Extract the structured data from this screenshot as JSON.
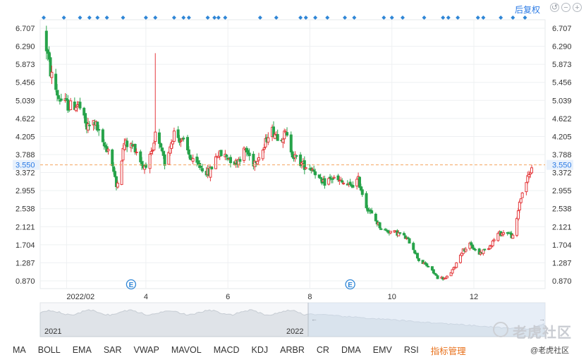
{
  "toolbar": {
    "restore_label": "后复权",
    "icons": [
      "refresh-icon",
      "zoom-out-icon",
      "zoom-in-icon"
    ]
  },
  "chart_data": {
    "type": "candlestick",
    "y_ticks": [
      "6.707",
      "6.290",
      "5.873",
      "5.456",
      "5.039",
      "4.622",
      "4.205",
      "3.788",
      "3.372",
      "2.955",
      "2.538",
      "2.121",
      "1.704",
      "1.287",
      "0.870"
    ],
    "ylim": [
      0.66,
      6.92
    ],
    "x_ticks": [
      "2022/02",
      "4",
      "6",
      "8",
      "10",
      "12"
    ],
    "current_price": "3.550",
    "current_price_value": 3.55,
    "up_color": "#e4393c",
    "down_color": "#27a34a",
    "event_marker_label": "E",
    "event_marker_dates": [
      "2022-03-21",
      "2022-08-31"
    ],
    "event_dots": [
      "2022-01-15",
      "2022-01-30",
      "2022-02-11",
      "2022-02-18",
      "2022-02-24",
      "2022-03-03",
      "2022-03-15",
      "2022-04-01",
      "2022-04-08",
      "2022-04-22",
      "2022-04-29",
      "2022-05-03",
      "2022-05-17",
      "2022-05-22",
      "2022-05-25",
      "2022-05-30",
      "2022-06-25",
      "2022-07-07",
      "2022-07-25",
      "2022-07-29",
      "2022-08-05",
      "2022-08-14",
      "2022-08-27",
      "2022-09-03",
      "2022-09-25",
      "2022-10-01",
      "2022-10-09",
      "2022-10-25",
      "2022-11-08",
      "2022-11-12",
      "2022-11-19",
      "2022-12-04",
      "2022-12-08",
      "2022-12-21",
      "2022-12-30",
      "2023-01-08"
    ],
    "prices_knots": [
      [
        "2022-01-15",
        6.62
      ],
      [
        "2022-01-20",
        5.7
      ],
      [
        "2022-01-26",
        5.1
      ],
      [
        "2022-02-03",
        4.9
      ],
      [
        "2022-02-10",
        4.95
      ],
      [
        "2022-02-16",
        4.4
      ],
      [
        "2022-02-22",
        4.55
      ],
      [
        "2022-02-28",
        4.0
      ],
      [
        "2022-03-05",
        3.9
      ],
      [
        "2022-03-10",
        3.05
      ],
      [
        "2022-03-16",
        4.05
      ],
      [
        "2022-03-24",
        3.95
      ],
      [
        "2022-03-30",
        3.5
      ],
      [
        "2022-04-06",
        3.8
      ],
      [
        "2022-04-08",
        4.25
      ],
      [
        "2022-04-15",
        3.6
      ],
      [
        "2022-04-22",
        4.3
      ],
      [
        "2022-04-29",
        4.05
      ],
      [
        "2022-05-06",
        3.6
      ],
      [
        "2022-05-12",
        3.5
      ],
      [
        "2022-05-18",
        3.35
      ],
      [
        "2022-05-24",
        3.8
      ],
      [
        "2022-05-31",
        3.75
      ],
      [
        "2022-06-07",
        3.6
      ],
      [
        "2022-06-14",
        3.9
      ],
      [
        "2022-06-20",
        3.6
      ],
      [
        "2022-06-28",
        3.95
      ],
      [
        "2022-07-02",
        4.4
      ],
      [
        "2022-07-09",
        4.2
      ],
      [
        "2022-07-14",
        4.25
      ],
      [
        "2022-07-20",
        3.75
      ],
      [
        "2022-07-27",
        3.55
      ],
      [
        "2022-08-04",
        3.45
      ],
      [
        "2022-08-10",
        3.1
      ],
      [
        "2022-08-17",
        3.25
      ],
      [
        "2022-08-24",
        3.15
      ],
      [
        "2022-08-31",
        3.05
      ],
      [
        "2022-09-06",
        3.2
      ],
      [
        "2022-09-12",
        2.6
      ],
      [
        "2022-09-18",
        2.3
      ],
      [
        "2022-09-24",
        2.05
      ],
      [
        "2022-10-01",
        2.0
      ],
      [
        "2022-10-08",
        1.95
      ],
      [
        "2022-10-15",
        1.75
      ],
      [
        "2022-10-21",
        1.35
      ],
      [
        "2022-10-28",
        1.2
      ],
      [
        "2022-11-04",
        0.95
      ],
      [
        "2022-11-10",
        0.92
      ],
      [
        "2022-11-16",
        1.15
      ],
      [
        "2022-11-22",
        1.55
      ],
      [
        "2022-11-28",
        1.7
      ],
      [
        "2022-12-05",
        1.5
      ],
      [
        "2022-12-12",
        1.65
      ],
      [
        "2022-12-19",
        1.95
      ],
      [
        "2022-12-26",
        2.0
      ],
      [
        "2022-12-31",
        1.85
      ],
      [
        "2023-01-04",
        2.7
      ],
      [
        "2023-01-08",
        3.1
      ],
      [
        "2023-01-15",
        3.6
      ]
    ]
  },
  "navigator": {
    "labels": [
      "2021",
      "2022"
    ]
  },
  "indicators": [
    "MA",
    "BOLL",
    "EMA",
    "SAR",
    "VWAP",
    "MAVOL",
    "MACD",
    "KDJ",
    "ARBR",
    "CR",
    "DMA",
    "EMV",
    "RSI",
    "指标管理"
  ],
  "watermark": {
    "text": "老虎社区",
    "small_text": "@老虎社区"
  }
}
